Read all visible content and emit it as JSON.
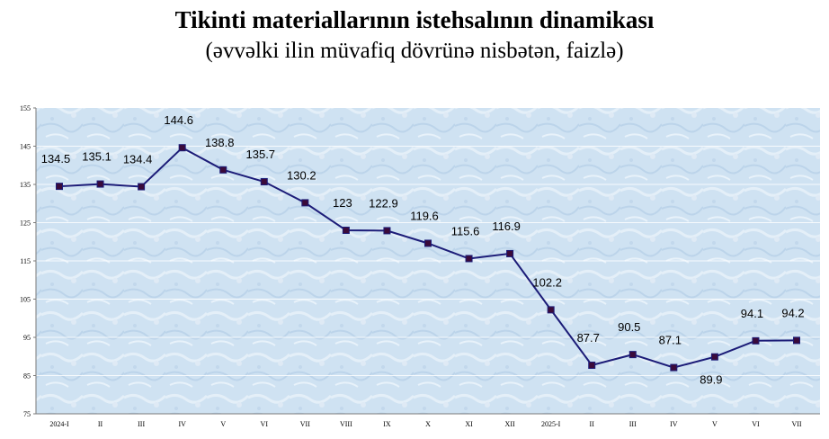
{
  "header": {
    "title": "Tikinti materiallarının istehsalının dinamikası",
    "subtitle": "(əvvəlki ilin müvafiq dövrünə nisbətən, faizlə)"
  },
  "colors": {
    "line": "#1c1c78",
    "marker": "#3a0a3a",
    "plot_bg": "#cfe2f2",
    "grid": "#ffffff",
    "axis": "#7a7a7a"
  },
  "chart_data": {
    "type": "line",
    "categories": [
      "2024-I",
      "II",
      "III",
      "IV",
      "V",
      "VI",
      "VII",
      "VIII",
      "IX",
      "X",
      "XI",
      "XII",
      "2025-I",
      "II",
      "III",
      "IV",
      "V",
      "VI",
      "VII"
    ],
    "series": [
      {
        "values": [
          134.5,
          135.1,
          134.4,
          144.6,
          138.8,
          135.7,
          130.2,
          123,
          122.9,
          119.6,
          115.6,
          116.9,
          102.2,
          87.7,
          90.5,
          87.1,
          89.9,
          94.1,
          94.2
        ]
      }
    ],
    "data_labels": [
      "134.5",
      "135.1",
      "134.4",
      "144.6",
      "138.8",
      "135.7",
      "130.2",
      "123",
      "122.9",
      "119.6",
      "115.6",
      "116.9",
      "102.2",
      "87.7",
      "90.5",
      "87.1",
      "89.9",
      "94.1",
      "94.2"
    ],
    "yticks": [
      "155",
      "145",
      "135",
      "125",
      "115",
      "105",
      "95",
      "85",
      "75"
    ],
    "ylim": [
      75,
      155
    ],
    "grid": true,
    "legend": "none"
  }
}
